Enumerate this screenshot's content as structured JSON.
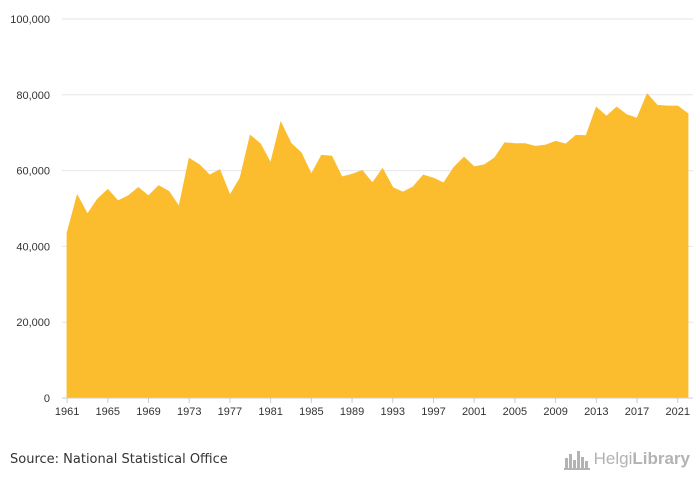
{
  "chart_data": {
    "type": "area",
    "title": "",
    "xlabel": "",
    "ylabel": "",
    "x": [
      1961,
      1962,
      1963,
      1964,
      1965,
      1966,
      1967,
      1968,
      1969,
      1970,
      1971,
      1972,
      1973,
      1974,
      1975,
      1976,
      1977,
      1978,
      1979,
      1980,
      1981,
      1982,
      1983,
      1984,
      1985,
      1986,
      1987,
      1988,
      1989,
      1990,
      1991,
      1992,
      1993,
      1994,
      1995,
      1996,
      1997,
      1998,
      1999,
      2000,
      2001,
      2002,
      2003,
      2004,
      2005,
      2006,
      2007,
      2008,
      2009,
      2010,
      2011,
      2012,
      2013,
      2014,
      2015,
      2016,
      2017,
      2018,
      2019,
      2020,
      2021,
      2022
    ],
    "series": [
      {
        "values": [
          43500,
          53500,
          48500,
          52500,
          55000,
          52000,
          53300,
          55500,
          53300,
          56000,
          54500,
          50500,
          63200,
          61500,
          58800,
          60200,
          53500,
          58000,
          69300,
          67000,
          62000,
          72700,
          67200,
          64700,
          59000,
          64000,
          63800,
          58300,
          59000,
          60000,
          56700,
          60500,
          55500,
          54300,
          55700,
          58800,
          58000,
          56700,
          60800,
          63500,
          61000,
          61500,
          63300,
          67300,
          67100,
          67100,
          66400,
          66700,
          67700,
          67000,
          69300,
          69200,
          76700,
          74300,
          76700,
          74700,
          73800,
          80200,
          77200,
          77000,
          77000,
          75000
        ]
      }
    ],
    "xticks": [
      1961,
      1965,
      1969,
      1973,
      1977,
      1981,
      1985,
      1989,
      1993,
      1997,
      2001,
      2005,
      2009,
      2013,
      2017,
      2021
    ],
    "xtick_labels": [
      "1961",
      "1965",
      "1969",
      "1973",
      "1977",
      "1981",
      "1985",
      "1989",
      "1993",
      "1997",
      "2001",
      "2005",
      "2009",
      "2013",
      "2017",
      "2021"
    ],
    "yticks": [
      0,
      20000,
      40000,
      60000,
      80000,
      100000
    ],
    "ytick_labels": [
      "0",
      "20,000",
      "40,000",
      "60,000",
      "80,000",
      "100,000"
    ],
    "ylim": [
      0,
      100000
    ],
    "xlim": [
      1960.5,
      2022.5
    ],
    "grid": "horizontal",
    "legend": "none",
    "colors": {
      "fill": "#fbbd2e",
      "grid": "#e6e6e6",
      "axis": "#cccccc",
      "text": "#333333"
    }
  },
  "footer": {
    "source": "Source: National Statistical Office",
    "brand_light": "Helgi",
    "brand_strong": "Library",
    "brand_icon": "city-skyline-icon"
  }
}
